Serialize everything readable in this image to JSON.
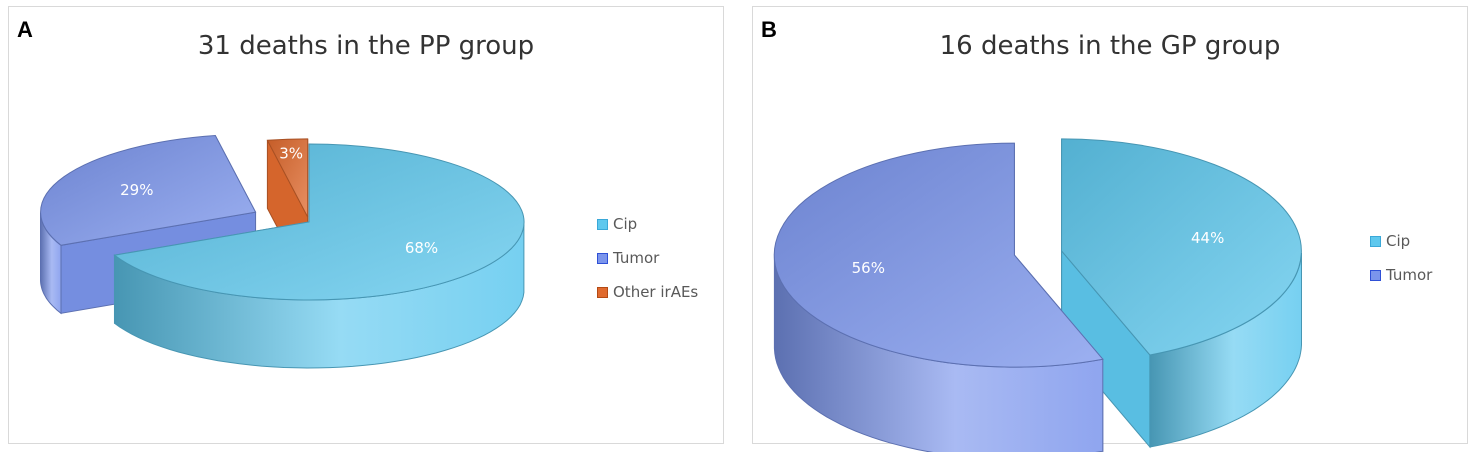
{
  "panels": [
    {
      "letter": "A",
      "chart_title": "31 deaths in the PP group",
      "legend": [
        "Cip",
        "Tumor",
        "Other irAEs"
      ]
    },
    {
      "letter": "B",
      "chart_title": "16 deaths in the GP group",
      "legend": [
        "Cip",
        "Tumor"
      ]
    }
  ],
  "chart_data": [
    {
      "type": "pie",
      "title": "31 deaths in the PP group",
      "style": "3d-exploded",
      "legend_position": "right",
      "slices": [
        {
          "name": "Cip",
          "value": 68,
          "label": "68%",
          "color": "#5ec8ee"
        },
        {
          "name": "Tumor",
          "value": 29,
          "label": "29%",
          "color": "#7b95ec"
        },
        {
          "name": "Other irAEs",
          "value": 3,
          "label": "3%",
          "color": "#e06a2e"
        }
      ]
    },
    {
      "type": "pie",
      "title": "16 deaths in the GP group",
      "style": "3d-exploded",
      "legend_position": "right",
      "slices": [
        {
          "name": "Cip",
          "value": 44,
          "label": "44%",
          "color": "#5ec8ee"
        },
        {
          "name": "Tumor",
          "value": 56,
          "label": "56%",
          "color": "#7b95ec"
        }
      ]
    }
  ]
}
